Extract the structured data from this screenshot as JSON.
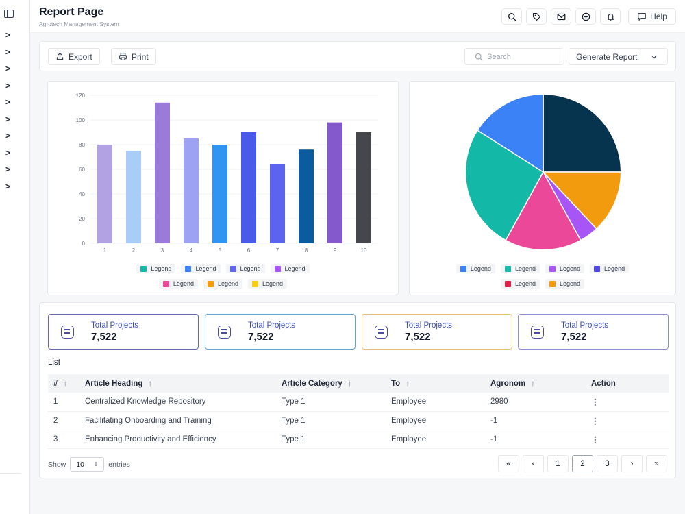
{
  "header": {
    "title": "Report Page",
    "subtitle": "Agrotech Management System",
    "help_label": "Help"
  },
  "toolbar": {
    "export_label": "Export",
    "print_label": "Print",
    "search_placeholder": "Search",
    "generate_label": "Generate Report"
  },
  "chart_data": [
    {
      "type": "bar",
      "categories": [
        "1",
        "2",
        "3",
        "4",
        "5",
        "6",
        "7",
        "8",
        "9",
        "10"
      ],
      "values": [
        80,
        75,
        114,
        85,
        80,
        90,
        64,
        76,
        98,
        90
      ],
      "colors": [
        "#b3a2e3",
        "#a9cdf7",
        "#9b7bd9",
        "#9da2f2",
        "#2f95f0",
        "#4a5bea",
        "#5c64ef",
        "#0a5c9e",
        "#8459cc",
        "#45474d"
      ],
      "ylim": [
        0,
        120
      ],
      "yticks": [
        0,
        20,
        40,
        60,
        80,
        100,
        120
      ],
      "legend": [
        {
          "label": "Legend",
          "color": "#14b8a6"
        },
        {
          "label": "Legend",
          "color": "#3b82f6"
        },
        {
          "label": "Legend",
          "color": "#6366f1"
        },
        {
          "label": "Legend",
          "color": "#a855f7"
        },
        {
          "label": "Legend",
          "color": "#ec4899"
        },
        {
          "label": "Legend",
          "color": "#f59e0b"
        },
        {
          "label": "Legend",
          "color": "#facc15"
        }
      ]
    },
    {
      "type": "pie",
      "values": [
        25,
        13,
        4,
        16,
        26,
        16
      ],
      "colors": [
        "#06344f",
        "#f29b0f",
        "#a855f7",
        "#ec4899",
        "#14b8a6",
        "#3b82f6"
      ],
      "legend": [
        {
          "label": "Legend",
          "color": "#3b82f6"
        },
        {
          "label": "Legend",
          "color": "#14b8a6"
        },
        {
          "label": "Legend",
          "color": "#a855f7"
        },
        {
          "label": "Legend",
          "color": "#4f46e5"
        },
        {
          "label": "Legend",
          "color": "#e11d48"
        },
        {
          "label": "Legend",
          "color": "#f29b0f"
        }
      ]
    }
  ],
  "cards": [
    {
      "label": "Total Projects",
      "value": "7,522",
      "border": "#6366b0"
    },
    {
      "label": "Total Projects",
      "value": "7,522",
      "border": "#60a5d8"
    },
    {
      "label": "Total Projects",
      "value": "7,522",
      "border": "#e5c07b"
    },
    {
      "label": "Total Projects",
      "value": "7,522",
      "border": "#8b8fd1"
    }
  ],
  "list": {
    "title": "List",
    "columns": [
      "#",
      "Article Heading",
      "Article Category",
      "To",
      "Agronom",
      "Action"
    ],
    "rows": [
      [
        "1",
        "Centralized Knowledge Repository",
        "Type 1",
        "Employee",
        "2980",
        "⋮"
      ],
      [
        "2",
        "Facilitating Onboarding and Training",
        "Type 1",
        "Employee",
        "-1",
        "⋮"
      ],
      [
        "3",
        "Enhancing Productivity and Efficiency",
        "Type 1",
        "Employee",
        "-1",
        "⋮"
      ]
    ]
  },
  "pagination": {
    "show_label": "Show",
    "entries_value": "10",
    "entries_label": "entries",
    "first": "«",
    "prev": "‹",
    "pages": [
      "1",
      "2",
      "3"
    ],
    "next": "›",
    "last": "»",
    "current": "2"
  }
}
